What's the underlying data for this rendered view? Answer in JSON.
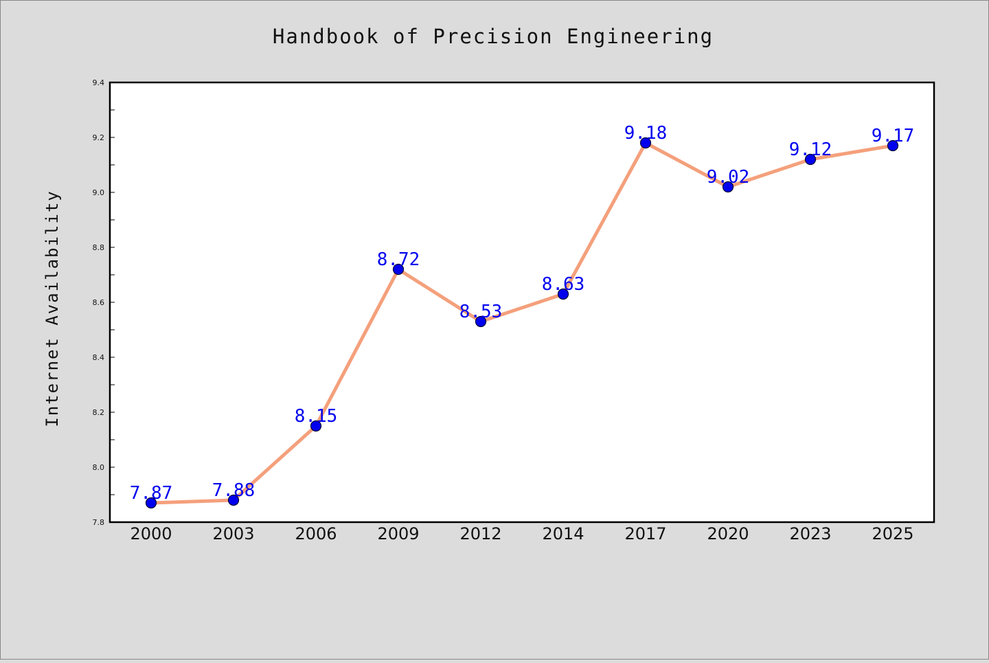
{
  "chart_data": {
    "type": "line",
    "title": "Handbook of Precision Engineering",
    "xlabel": "",
    "ylabel": "Internet Availability",
    "categories": [
      "2000",
      "2003",
      "2006",
      "2009",
      "2012",
      "2014",
      "2017",
      "2020",
      "2023",
      "2025"
    ],
    "series": [
      {
        "values": [
          7.87,
          7.88,
          8.15,
          8.72,
          8.53,
          8.63,
          9.18,
          9.02,
          9.12,
          9.17
        ],
        "data_labels": [
          "7.87",
          "7.88",
          "8.15",
          "8.72",
          "8.53",
          "8.63",
          "9.18",
          "9.02",
          "9.12",
          "9.17"
        ]
      }
    ],
    "ylim": [
      7.8,
      9.4
    ],
    "yticks": [
      7.8,
      8.0,
      8.2,
      8.4,
      8.6,
      8.8,
      9.0,
      9.2,
      9.4
    ],
    "ytick_labels": [
      "7.8",
      "8.0",
      "8.2",
      "8.4",
      "8.6",
      "8.8",
      "9.0",
      "9.2",
      "9.4"
    ],
    "grid": false,
    "legend": "none",
    "colors": {
      "line": "#f4a07c",
      "marker_fill": "#0000ee",
      "marker_edge": "#000033",
      "data_label": "#0000ee",
      "plot_background": "#ffffff",
      "figure_background": "#dcdcdc",
      "axes_border": "#000000"
    }
  }
}
